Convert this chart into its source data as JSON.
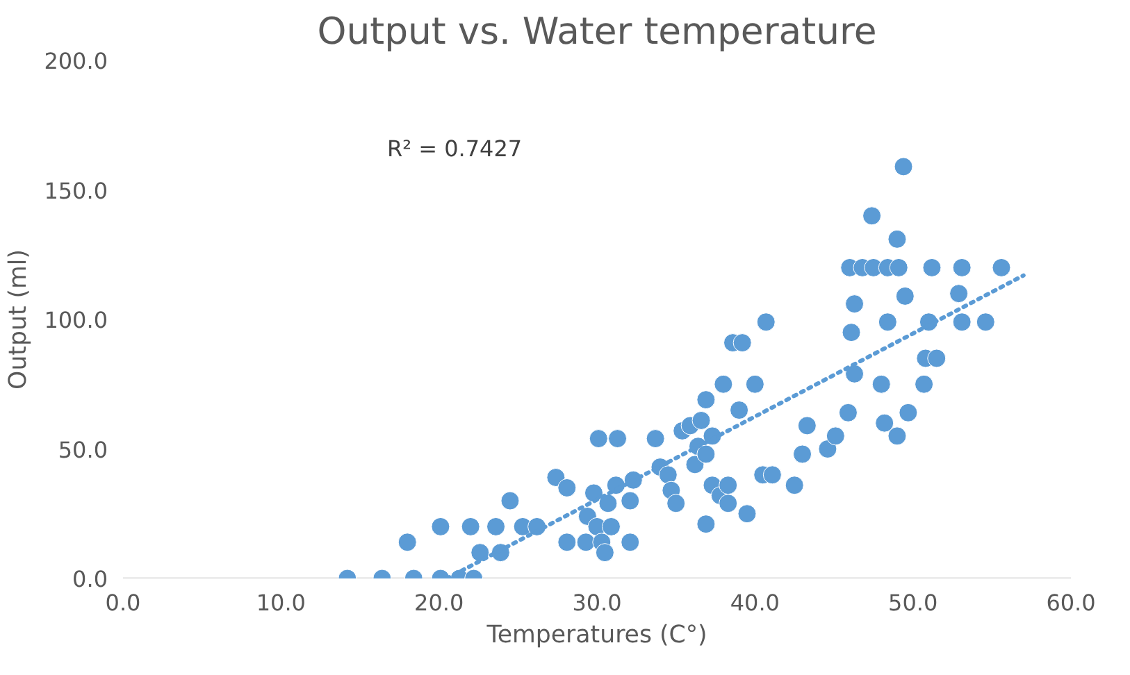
{
  "chart_data": {
    "type": "scatter",
    "title": "Output vs. Water temperature",
    "xlabel": "Temperatures (C°)",
    "ylabel": "Output (ml)",
    "xlim": [
      0,
      60
    ],
    "ylim": [
      0,
      200
    ],
    "xticks": [
      {
        "value": 0,
        "label": "0.0"
      },
      {
        "value": 10,
        "label": "10.0"
      },
      {
        "value": 20,
        "label": "20.0"
      },
      {
        "value": 30,
        "label": "30.0"
      },
      {
        "value": 40,
        "label": "40.0"
      },
      {
        "value": 50,
        "label": "50.0"
      },
      {
        "value": 60,
        "label": "60.0"
      }
    ],
    "yticks": [
      {
        "value": 0,
        "label": "0.0"
      },
      {
        "value": 50,
        "label": "50.0"
      },
      {
        "value": 100,
        "label": "100.0"
      },
      {
        "value": 150,
        "label": "150.0"
      },
      {
        "value": 200,
        "label": "200.0"
      }
    ],
    "grid": false,
    "marker": "circle",
    "annotations": [
      "R² = 0.7427"
    ],
    "series": [
      {
        "color": "#5b9bd5",
        "x": [
          14.2,
          16.4,
          18.0,
          18.4,
          20.1,
          20.1,
          21.3,
          22.2,
          22.0,
          22.6,
          23.6,
          23.9,
          24.5,
          25.3,
          26.2,
          27.4,
          28.1,
          28.1,
          29.3,
          29.4,
          29.8,
          30.1,
          30.0,
          30.3,
          30.5,
          30.7,
          30.9,
          31.2,
          31.3,
          32.1,
          32.1,
          32.3,
          33.7,
          34.0,
          34.5,
          34.7,
          35.0,
          35.4,
          35.9,
          36.2,
          36.4,
          36.6,
          36.9,
          36.9,
          36.9,
          37.3,
          37.3,
          37.8,
          38.0,
          38.3,
          38.3,
          38.6,
          39.2,
          39.0,
          39.5,
          40.0,
          40.5,
          40.7,
          41.1,
          42.5,
          43.0,
          43.3,
          44.6,
          45.1,
          45.9,
          46.0,
          46.1,
          46.3,
          46.3,
          46.8,
          47.4,
          47.5,
          48.0,
          48.2,
          48.4,
          48.4,
          49.0,
          49.0,
          49.1,
          49.4,
          49.5,
          49.7,
          50.7,
          50.8,
          51.0,
          51.2,
          51.5,
          52.9,
          53.1,
          53.1,
          54.6,
          55.6
        ],
        "values": [
          0,
          0,
          14,
          0,
          20,
          0,
          0,
          0,
          20,
          10,
          20,
          10,
          30,
          20,
          20,
          39,
          35,
          14,
          14,
          24,
          33,
          54,
          20,
          14,
          10,
          29,
          20,
          36,
          54,
          30,
          14,
          38,
          54,
          43,
          40,
          34,
          29,
          57,
          59,
          44,
          51,
          61,
          69,
          48,
          21,
          55,
          36,
          32,
          75,
          36,
          29,
          91,
          91,
          65,
          25,
          75,
          40,
          99,
          40,
          36,
          48,
          59,
          50,
          55,
          64,
          120,
          95,
          106,
          79,
          120,
          140,
          120,
          75,
          60,
          120,
          99,
          131,
          55,
          120,
          159,
          109,
          64,
          75,
          85,
          99,
          120,
          85,
          110,
          120,
          99,
          99,
          120
        ]
      },
      {
        "type": "line",
        "color": "#5b9bd5",
        "line_style": "dotted",
        "marker": "none",
        "x": [
          20.5,
          57
        ],
        "values": [
          0,
          117
        ]
      }
    ]
  }
}
